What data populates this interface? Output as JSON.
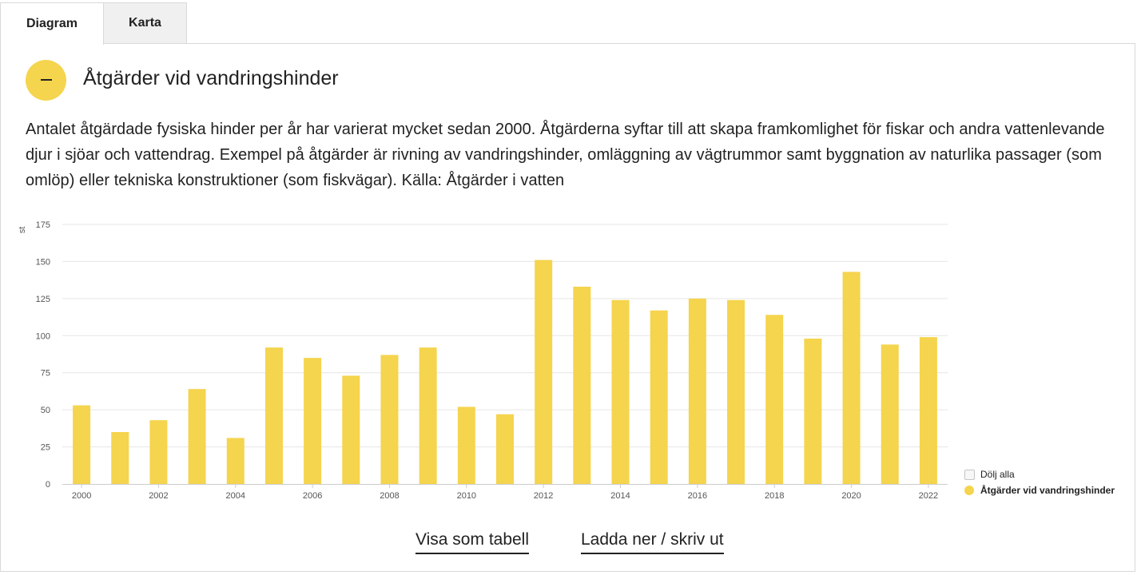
{
  "tabs": [
    {
      "label": "Diagram",
      "active": true
    },
    {
      "label": "Karta",
      "active": false
    }
  ],
  "section": {
    "title": "Åtgärder vid vandringshinder",
    "toggle_icon": "minus-icon",
    "description": "Antalet åtgärdade fysiska hinder per år har varierat mycket sedan 2000. Åtgärderna syftar till att skapa framkomlighet för fiskar och andra vattenlevande djur i sjöar och vattendrag. Exempel på åtgärder är rivning av vandringshinder, omläggning av vägtrummor samt byggnation av naturlika passager (som omlöp) eller tekniska konstruktioner (som fiskvägar). Källa: Åtgärder i vatten"
  },
  "chart_data": {
    "type": "bar",
    "title": "",
    "xlabel": "",
    "ylabel": "st",
    "ylim": [
      0,
      175
    ],
    "yticks": [
      0,
      25,
      50,
      75,
      100,
      125,
      150,
      175
    ],
    "grid": true,
    "legend_position": "bottom-right",
    "categories": [
      "2000",
      "2001",
      "2002",
      "2003",
      "2004",
      "2005",
      "2006",
      "2007",
      "2008",
      "2009",
      "2010",
      "2011",
      "2012",
      "2013",
      "2014",
      "2015",
      "2016",
      "2017",
      "2018",
      "2019",
      "2020",
      "2021",
      "2022"
    ],
    "xtick_labels": [
      "2000",
      "2002",
      "2004",
      "2006",
      "2008",
      "2010",
      "2012",
      "2014",
      "2016",
      "2018",
      "2020",
      "2022"
    ],
    "series": [
      {
        "name": "Åtgärder vid vandringshinder",
        "color": "#f5d44e",
        "values": [
          53,
          35,
          43,
          64,
          31,
          92,
          85,
          73,
          87,
          92,
          52,
          47,
          151,
          133,
          124,
          117,
          125,
          124,
          114,
          98,
          143,
          94,
          99
        ]
      }
    ]
  },
  "legend": {
    "hide_all_label": "Dölj alla",
    "series_label": "Åtgärder vid vandringshinder",
    "series_color": "#f5d44e"
  },
  "actions": {
    "show_table": "Visa som tabell",
    "download": "Ladda ner / skriv ut"
  }
}
